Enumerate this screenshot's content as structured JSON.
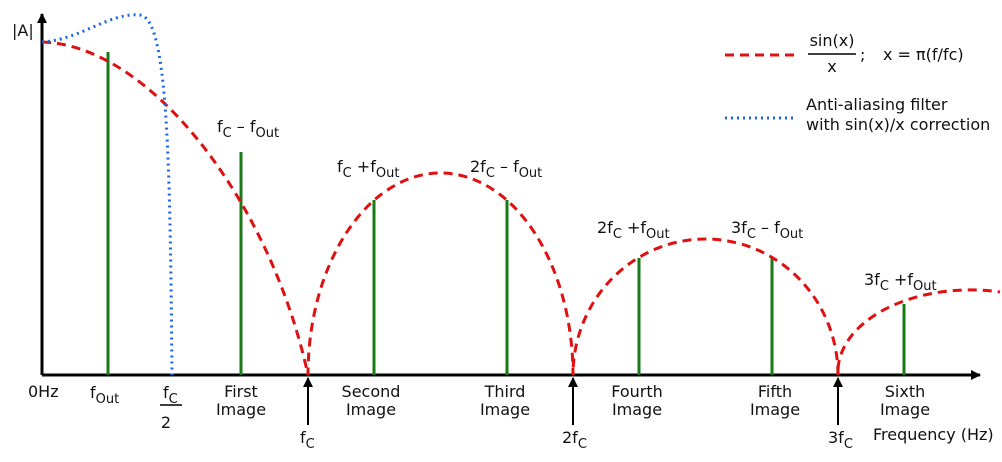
{
  "axis": {
    "y_label": "|A|",
    "origin": "0Hz",
    "x_label": "Frequency (Hz)"
  },
  "f_out": [
    "f",
    "Out"
  ],
  "fc_half": {
    "numerator": [
      "f",
      "C"
    ],
    "denominator": "2"
  },
  "images": [
    [
      "First",
      "Image"
    ],
    [
      "Second",
      "Image"
    ],
    [
      "Third",
      "Image"
    ],
    [
      "Fourth",
      "Image"
    ],
    [
      "Fifth",
      "Image"
    ],
    [
      "Sixth",
      "Image"
    ]
  ],
  "fc_marks": [
    [
      "f",
      "C"
    ],
    [
      "2f",
      "C"
    ],
    [
      "3f",
      "C"
    ]
  ],
  "peak_labels": [
    [
      "f",
      "C",
      " – f",
      "Out"
    ],
    [
      "f",
      "C",
      " +f",
      "Out"
    ],
    [
      "2f",
      "C",
      " – f",
      "Out"
    ],
    [
      "2f",
      "C",
      " +f",
      "Out"
    ],
    [
      "3f",
      "C",
      " – f",
      "Out"
    ],
    [
      "3f",
      "C",
      " +f",
      "Out"
    ]
  ],
  "legend": {
    "sinc": {
      "numerator": "sin(x)",
      "denominator": "x",
      "separator": ";",
      "definition": "x = π(f/fc)"
    },
    "filter": [
      "Anti-aliasing filter",
      "with sin(x)/x correction"
    ]
  }
}
